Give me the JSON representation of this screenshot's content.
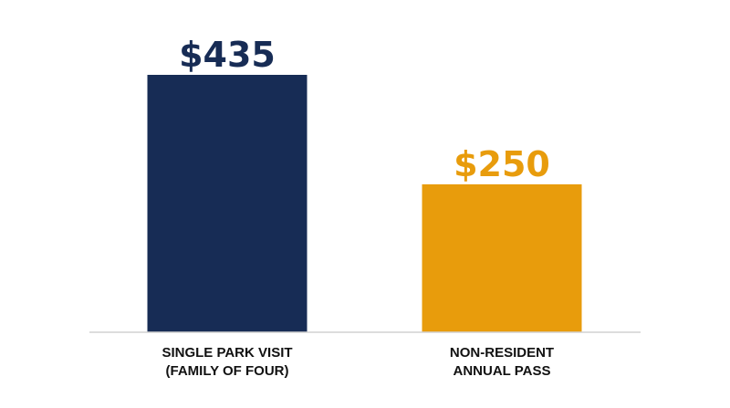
{
  "chart_data": {
    "type": "bar",
    "title": "",
    "xlabel": "",
    "ylabel": "",
    "ylim": [
      0,
      500
    ],
    "grid": false,
    "legend": "none",
    "categories": [
      [
        "SINGLE PARK VISIT",
        "(FAMILY OF FOUR)"
      ],
      [
        "NON-RESIDENT",
        "ANNUAL PASS"
      ]
    ],
    "values": [
      435,
      250
    ],
    "value_labels": [
      "$435",
      "$250"
    ],
    "colors": [
      "#172C55",
      "#E89C0C"
    ],
    "baseline_color": "#D2D2D2"
  }
}
